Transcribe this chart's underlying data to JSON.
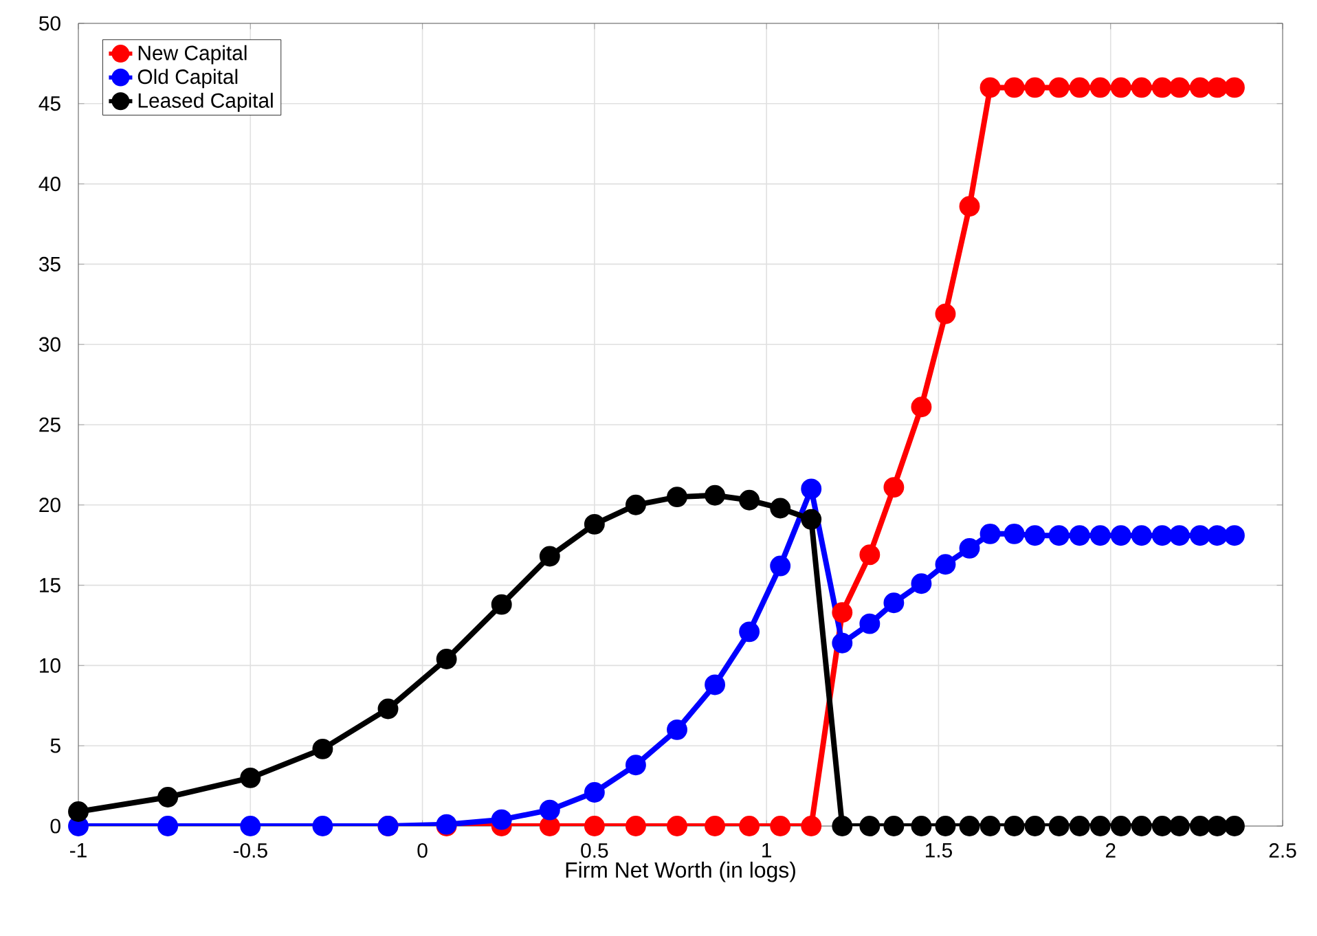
{
  "chart_data": {
    "type": "line",
    "xlabel": "Firm Net Worth (in logs)",
    "x": [
      -1.0,
      -0.74,
      -0.5,
      -0.29,
      -0.1,
      0.07,
      0.23,
      0.37,
      0.5,
      0.62,
      0.74,
      0.85,
      0.95,
      1.04,
      1.13,
      1.22,
      1.3,
      1.37,
      1.45,
      1.52,
      1.59,
      1.65,
      1.72,
      1.78,
      1.85,
      1.91,
      1.97,
      2.03,
      2.09,
      2.15,
      2.2,
      2.26,
      2.31,
      2.36
    ],
    "series": [
      {
        "name": "New Capital",
        "color": "#ff0000",
        "values": [
          null,
          null,
          null,
          null,
          0,
          0,
          0,
          0,
          0,
          0,
          0,
          0,
          0,
          0,
          0,
          13.3,
          16.9,
          21.1,
          26.1,
          31.9,
          38.6,
          46.0,
          46.0,
          46.0,
          46.0,
          46.0,
          46.0,
          46.0,
          46.0,
          46.0,
          46.0,
          46.0,
          46.0,
          46.0
        ]
      },
      {
        "name": "Old Capital",
        "color": "#0000ff",
        "values": [
          0,
          0,
          0,
          0,
          0,
          0.1,
          0.4,
          1.0,
          2.1,
          3.8,
          6.0,
          8.8,
          12.1,
          16.2,
          21.0,
          11.4,
          12.6,
          13.9,
          15.1,
          16.3,
          17.3,
          18.2,
          18.2,
          18.1,
          18.1,
          18.1,
          18.1,
          18.1,
          18.1,
          18.1,
          18.1,
          18.1,
          18.1,
          18.1
        ]
      },
      {
        "name": "Leased Capital",
        "color": "#000000",
        "values": [
          0.9,
          1.8,
          3.0,
          4.8,
          7.3,
          10.4,
          13.8,
          16.8,
          18.8,
          20.0,
          20.5,
          20.6,
          20.3,
          19.8,
          19.1,
          0,
          0,
          0,
          0,
          0,
          0,
          0,
          0,
          0,
          0,
          0,
          0,
          0,
          0,
          0,
          0,
          0,
          0,
          0
        ]
      }
    ],
    "xlim": [
      -1,
      2.5
    ],
    "xticks": [
      -1,
      -0.5,
      0,
      0.5,
      1,
      1.5,
      2,
      2.5
    ],
    "ylim": [
      0,
      50
    ],
    "yticks": [
      0,
      5,
      10,
      15,
      20,
      25,
      30,
      35,
      40,
      45,
      50
    ],
    "grid": true,
    "legend": "top left",
    "marker": "circle",
    "line_style": "solid"
  }
}
